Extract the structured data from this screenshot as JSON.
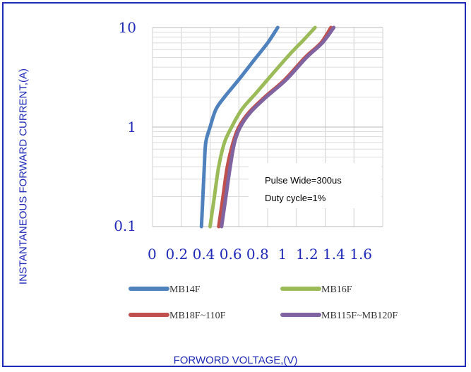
{
  "chart_data": {
    "type": "line",
    "y_scale": "log",
    "xlabel": "FORWORD VOLTAGE,(V)",
    "ylabel": "INSTANTANEOUS FORWARD CURRENT,(A)",
    "xlim": [
      0,
      1.6
    ],
    "ylim": [
      0.1,
      10
    ],
    "x_ticks": [
      "0",
      "0.2",
      "0.4",
      "0.6",
      "0.8",
      "1",
      "1.2",
      "1.4",
      "1.6"
    ],
    "y_ticks": [
      "0.1",
      "1",
      "10"
    ],
    "grid": true,
    "legend_position": "bottom",
    "annotation": [
      "Pulse Wide=300us",
      "Duty cycle=1%"
    ],
    "series": [
      {
        "name": "MB14F",
        "color": "#4f81bd",
        "points": [
          [
            0.34,
            0.1
          ],
          [
            0.35,
            0.2
          ],
          [
            0.36,
            0.4
          ],
          [
            0.37,
            0.7
          ],
          [
            0.4,
            1.0
          ],
          [
            0.44,
            1.5
          ],
          [
            0.5,
            2.0
          ],
          [
            0.6,
            3.0
          ],
          [
            0.72,
            5.0
          ],
          [
            0.8,
            7.0
          ],
          [
            0.87,
            10
          ]
        ]
      },
      {
        "name": "MB16F",
        "color": "#9bbb59",
        "points": [
          [
            0.4,
            0.1
          ],
          [
            0.43,
            0.2
          ],
          [
            0.46,
            0.4
          ],
          [
            0.5,
            0.7
          ],
          [
            0.55,
            1.0
          ],
          [
            0.62,
            1.5
          ],
          [
            0.72,
            2.2
          ],
          [
            0.84,
            3.5
          ],
          [
            0.96,
            5.5
          ],
          [
            1.05,
            7.5
          ],
          [
            1.13,
            10
          ]
        ]
      },
      {
        "name": "MB18F~110F",
        "color": "#c0504d",
        "points": [
          [
            0.46,
            0.1
          ],
          [
            0.49,
            0.2
          ],
          [
            0.52,
            0.4
          ],
          [
            0.56,
            0.7
          ],
          [
            0.6,
            1.0
          ],
          [
            0.67,
            1.4
          ],
          [
            0.78,
            2.0
          ],
          [
            0.92,
            3.0
          ],
          [
            1.06,
            5.0
          ],
          [
            1.17,
            7.0
          ],
          [
            1.24,
            10
          ]
        ]
      },
      {
        "name": "MB115F~MB120F",
        "color": "#8064a2",
        "points": [
          [
            0.48,
            0.1
          ],
          [
            0.51,
            0.2
          ],
          [
            0.54,
            0.4
          ],
          [
            0.57,
            0.7
          ],
          [
            0.61,
            1.0
          ],
          [
            0.68,
            1.4
          ],
          [
            0.79,
            2.0
          ],
          [
            0.93,
            3.0
          ],
          [
            1.07,
            5.0
          ],
          [
            1.18,
            7.0
          ],
          [
            1.26,
            10
          ]
        ]
      }
    ]
  },
  "legend": {
    "items": [
      {
        "label": "MB14F",
        "color": "#4f81bd"
      },
      {
        "label": "MB16F",
        "color": "#9bbb59"
      },
      {
        "label": "MB18F~110F",
        "color": "#c0504d"
      },
      {
        "label": "MB115F~MB120F",
        "color": "#8064a2"
      }
    ]
  },
  "labels": {
    "x_tick_text": "0  0.2 0.4 0.6 0.8  1  1.2 1.4 1.6",
    "y_axis": "INSTANTANEOUS FORWARD CURRENT,(A)",
    "x_axis": "FORWORD VOLTAGE,(V)",
    "ytick_01": "0.1",
    "ytick_1": "1",
    "ytick_10": "10",
    "note_line1": "Pulse Wide=300us",
    "note_line2": "Duty cycle=1%"
  }
}
